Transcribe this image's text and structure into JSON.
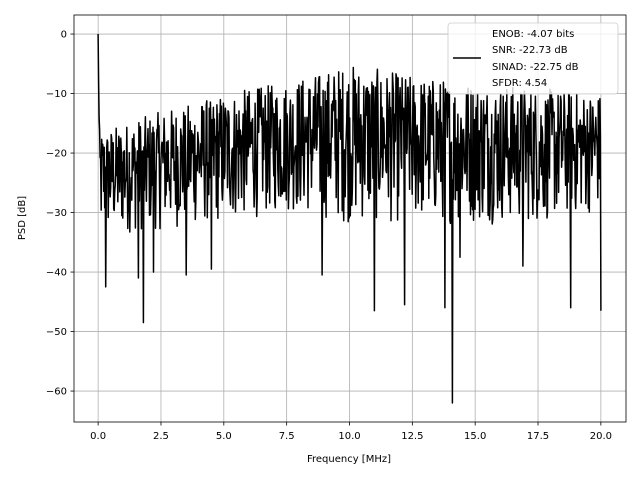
{
  "chart_data": {
    "type": "line",
    "title": "",
    "xlabel": "Frequency [MHz]",
    "ylabel": "PSD [dB]",
    "xlim": [
      -0.96,
      21.0
    ],
    "ylim": [
      -65.2,
      3.2
    ],
    "xticks": [
      0.0,
      2.5,
      5.0,
      7.5,
      10.0,
      12.5,
      15.0,
      17.5,
      20.0
    ],
    "xtick_labels": [
      "0.0",
      "2.5",
      "5.0",
      "7.5",
      "10.0",
      "12.5",
      "15.0",
      "17.5",
      "20.0"
    ],
    "yticks": [
      0,
      -10,
      -20,
      -30,
      -40,
      -50,
      -60
    ],
    "ytick_labels": [
      "0",
      "−10",
      "−20",
      "−30",
      "−40",
      "−50",
      "−60"
    ],
    "grid": true,
    "legend": {
      "placement": "top-right",
      "label_lines": [
        "ENOB: -4.07 bits",
        "SNR: -22.73 dB",
        "SINAD: -22.75 dB",
        "SFDR: 4.54"
      ]
    },
    "series": [
      {
        "name": "PSD",
        "color": "#000000",
        "x_range": [
          0,
          20
        ],
        "num_points": 1000,
        "upper_envelope": [
          [
            0.3,
            -16
          ],
          [
            2.5,
            -13
          ],
          [
            5,
            -10
          ],
          [
            7.5,
            -8
          ],
          [
            10,
            -5
          ],
          [
            12.5,
            -7
          ],
          [
            15,
            -8
          ],
          [
            17.5,
            -9
          ],
          [
            20,
            -10
          ]
        ],
        "lower_envelope": [
          [
            0.3,
            -34
          ],
          [
            2.5,
            -33
          ],
          [
            5,
            -32
          ],
          [
            7.5,
            -30
          ],
          [
            10,
            -32
          ],
          [
            12.5,
            -32
          ],
          [
            15,
            -32
          ],
          [
            17.5,
            -32
          ],
          [
            20,
            -30
          ]
        ],
        "notable_points": [
          [
            0,
            0
          ],
          [
            0.05,
            -8
          ],
          [
            0.3,
            -42.5
          ],
          [
            1.6,
            -41
          ],
          [
            1.8,
            -48.5
          ],
          [
            2.2,
            -40
          ],
          [
            3.5,
            -40.5
          ],
          [
            4.5,
            -39.5
          ],
          [
            8.9,
            -40.5
          ],
          [
            11.0,
            -46.5
          ],
          [
            12.2,
            -45.5
          ],
          [
            13.8,
            -46
          ],
          [
            14.1,
            -62
          ],
          [
            14.4,
            -37.5
          ],
          [
            16.9,
            -39
          ],
          [
            18.8,
            -46
          ],
          [
            20.0,
            -46.5
          ]
        ]
      }
    ]
  }
}
